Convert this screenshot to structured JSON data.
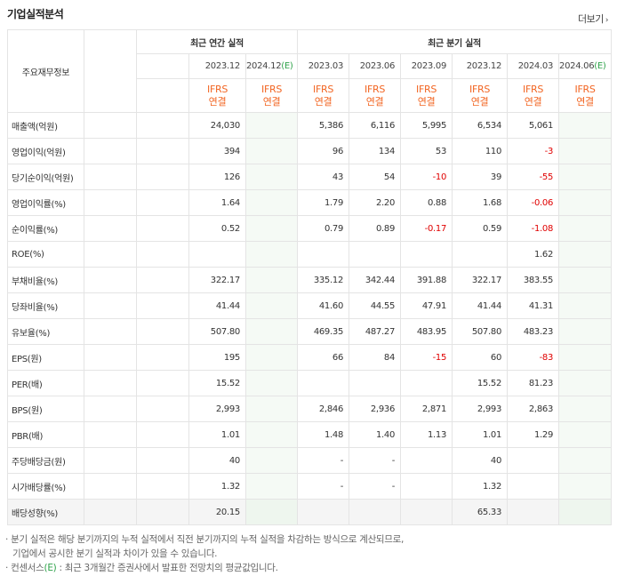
{
  "title": "기업실적분석",
  "more_label": "더보기",
  "more_icon": "chevron-right-icon",
  "groups": {
    "annual": "최근 연간 실적",
    "quarterly": "최근 분기 실적"
  },
  "corner_label": "주요재무정보",
  "periods": [
    {
      "pre": "2023.12",
      "mark": "",
      "post": "",
      "estimate": false
    },
    {
      "pre": "2024.12",
      "mark": "(E)",
      "post": "",
      "estimate": true
    },
    {
      "pre": "2023.03",
      "mark": "",
      "post": "",
      "estimate": false
    },
    {
      "pre": "2023.06",
      "mark": "",
      "post": "",
      "estimate": false
    },
    {
      "pre": "2023.09",
      "mark": "",
      "post": "",
      "estimate": false
    },
    {
      "pre": "2023.12",
      "mark": "",
      "post": "",
      "estimate": false
    },
    {
      "pre": "2024.03",
      "mark": "",
      "post": "",
      "estimate": false
    },
    {
      "pre": "2024.06",
      "mark": "(E)",
      "post": "",
      "estimate": true
    }
  ],
  "basis": {
    "line1": "IFRS",
    "line2": "연결"
  },
  "rows": [
    {
      "label": "매출액(억원)",
      "values": [
        "24,030",
        "",
        "5,386",
        "6,116",
        "5,995",
        "6,534",
        "5,061",
        ""
      ],
      "shade": false
    },
    {
      "label": "영업이익(억원)",
      "values": [
        "394",
        "",
        "96",
        "134",
        "53",
        "110",
        "-3",
        ""
      ],
      "shade": false
    },
    {
      "label": "당기순이익(억원)",
      "values": [
        "126",
        "",
        "43",
        "54",
        "-10",
        "39",
        "-55",
        ""
      ],
      "shade": false
    },
    {
      "label": "영업이익률(%)",
      "values": [
        "1.64",
        "",
        "1.79",
        "2.20",
        "0.88",
        "1.68",
        "-0.06",
        ""
      ],
      "shade": false
    },
    {
      "label": "순이익률(%)",
      "values": [
        "0.52",
        "",
        "0.79",
        "0.89",
        "-0.17",
        "0.59",
        "-1.08",
        ""
      ],
      "shade": false
    },
    {
      "label": "ROE(%)",
      "values": [
        "",
        "",
        "",
        "",
        "",
        "",
        "1.62",
        ""
      ],
      "shade": false
    },
    {
      "label": "부채비율(%)",
      "values": [
        "322.17",
        "",
        "335.12",
        "342.44",
        "391.88",
        "322.17",
        "383.55",
        ""
      ],
      "shade": false
    },
    {
      "label": "당좌비율(%)",
      "values": [
        "41.44",
        "",
        "41.60",
        "44.55",
        "47.91",
        "41.44",
        "41.31",
        ""
      ],
      "shade": false
    },
    {
      "label": "유보율(%)",
      "values": [
        "507.80",
        "",
        "469.35",
        "487.27",
        "483.95",
        "507.80",
        "483.23",
        ""
      ],
      "shade": false
    },
    {
      "label": "EPS(원)",
      "values": [
        "195",
        "",
        "66",
        "84",
        "-15",
        "60",
        "-83",
        ""
      ],
      "shade": false
    },
    {
      "label": "PER(배)",
      "values": [
        "15.52",
        "",
        "",
        "",
        "",
        "15.52",
        "81.23",
        ""
      ],
      "shade": false
    },
    {
      "label": "BPS(원)",
      "values": [
        "2,993",
        "",
        "2,846",
        "2,936",
        "2,871",
        "2,993",
        "2,863",
        ""
      ],
      "shade": false
    },
    {
      "label": "PBR(배)",
      "values": [
        "1.01",
        "",
        "1.48",
        "1.40",
        "1.13",
        "1.01",
        "1.29",
        ""
      ],
      "shade": false
    },
    {
      "label": "주당배당금(원)",
      "values": [
        "40",
        "",
        "-",
        "-",
        "",
        "40",
        "",
        ""
      ],
      "shade": false
    },
    {
      "label": "시가배당률(%)",
      "values": [
        "1.32",
        "",
        "-",
        "-",
        "",
        "1.32",
        "",
        ""
      ],
      "shade": false
    },
    {
      "label": "배당성향(%)",
      "values": [
        "20.15",
        "",
        "",
        "",
        "",
        "65.33",
        "",
        ""
      ],
      "shade": true
    }
  ],
  "notes": {
    "line1": "분기 실적은 해당 분기까지의 누적 실적에서 직전 분기까지의 누적 실적을 차감하는 방식으로 계산되므로,",
    "line2": "기업에서 공시한 분기 실적과 차이가 있을 수 있습니다.",
    "line3_pre": "컨센서스",
    "line3_mark": "(E)",
    "line3_post": " : 최근 3개월간 증권사에서 발표한 전망치의 평균값입니다."
  }
}
